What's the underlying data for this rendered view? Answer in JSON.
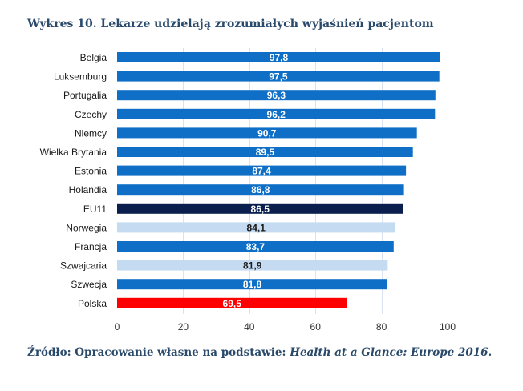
{
  "title": "Wykres 10. Lekarze udzielają zrozumiałych wyjaśnień pacjentom",
  "source": {
    "prefix": "Źródło: Opracowanie własne na podstawie: ",
    "italic": "Health at a Glance: Europe 2016",
    "suffix": "."
  },
  "chart_data": {
    "type": "bar",
    "orientation": "horizontal",
    "categories": [
      "Belgia",
      "Luksemburg",
      "Portugalia",
      "Czechy",
      "Niemcy",
      "Wielka Brytania",
      "Estonia",
      "Holandia",
      "EU11",
      "Norwegia",
      "Francja",
      "Szwajcaria",
      "Szwecja",
      "Polska"
    ],
    "values": [
      97.8,
      97.5,
      96.3,
      96.2,
      90.7,
      89.5,
      87.4,
      86.8,
      86.5,
      84.1,
      83.7,
      81.9,
      81.8,
      69.5
    ],
    "value_labels": [
      "97,8",
      "97,5",
      "96,3",
      "96,2",
      "90,7",
      "89,5",
      "87,4",
      "86,8",
      "86,5",
      "84,1",
      "83,7",
      "81,9",
      "81,8",
      "69,5"
    ],
    "bar_colors": [
      "#0f6fc6",
      "#0f6fc6",
      "#0f6fc6",
      "#0f6fc6",
      "#0f6fc6",
      "#0f6fc6",
      "#0f6fc6",
      "#0f6fc6",
      "#0a1f4d",
      "#c5dbf2",
      "#0f6fc6",
      "#c5dbf2",
      "#0f6fc6",
      "#ff0000"
    ],
    "label_colors": [
      "#ffffff",
      "#ffffff",
      "#ffffff",
      "#ffffff",
      "#ffffff",
      "#ffffff",
      "#ffffff",
      "#ffffff",
      "#ffffff",
      "#1a1a1a",
      "#ffffff",
      "#1a1a1a",
      "#ffffff",
      "#ffffff"
    ],
    "x_ticks": [
      0,
      20,
      40,
      60,
      80,
      100
    ],
    "xlim": [
      0,
      100
    ],
    "grid": true,
    "legend": "none"
  }
}
